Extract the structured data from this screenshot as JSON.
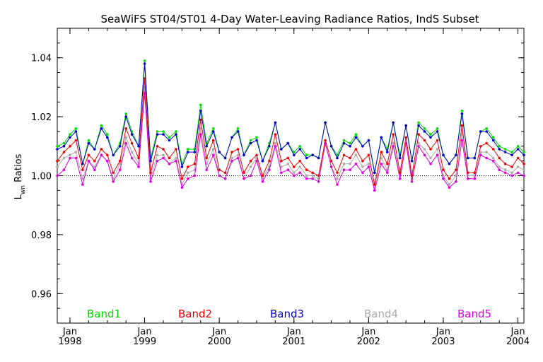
{
  "chart_data": {
    "type": "line",
    "title": "SeaWiFS ST04/ST01 4-Day Water-Leaving Radiance Ratios, IndS Subset",
    "xlabel": "",
    "ylabel_main": "L",
    "ylabel_sub": "wn",
    "ylabel_rest": " Ratios",
    "ylim": [
      0.95,
      1.05
    ],
    "yticks": [
      0.96,
      0.98,
      1.0,
      1.02,
      1.04
    ],
    "ytick_labels": [
      "0.96",
      "0.98",
      "1.00",
      "1.02",
      "1.04"
    ],
    "reference_line": 1.0,
    "xlim": [
      1997.83,
      2004.08
    ],
    "xticks": [
      {
        "value": 1998,
        "month": "Jan",
        "year": "1998"
      },
      {
        "value": 1999,
        "month": "Jan",
        "year": "1999"
      },
      {
        "value": 2000,
        "month": "Jan",
        "year": "2000"
      },
      {
        "value": 2001,
        "month": "Jan",
        "year": "2001"
      },
      {
        "value": 2002,
        "month": "Jan",
        "year": "2002"
      },
      {
        "value": 2003,
        "month": "Jan",
        "year": "2003"
      },
      {
        "value": 2004,
        "month": "Jan",
        "year": "2004"
      }
    ],
    "x": [
      1997.83,
      1997.92,
      1998.0,
      1998.08,
      1998.17,
      1998.25,
      1998.33,
      1998.42,
      1998.5,
      1998.58,
      1998.67,
      1998.75,
      1998.83,
      1998.92,
      1999.0,
      1999.08,
      1999.17,
      1999.25,
      1999.33,
      1999.42,
      1999.5,
      1999.58,
      1999.67,
      1999.75,
      1999.83,
      1999.92,
      2000.0,
      2000.08,
      2000.17,
      2000.25,
      2000.33,
      2000.42,
      2000.5,
      2000.58,
      2000.67,
      2000.75,
      2000.83,
      2000.92,
      2001.0,
      2001.08,
      2001.17,
      2001.25,
      2001.33,
      2001.42,
      2001.5,
      2001.58,
      2001.67,
      2001.75,
      2001.83,
      2001.92,
      2002.0,
      2002.08,
      2002.17,
      2002.25,
      2002.33,
      2002.42,
      2002.5,
      2002.58,
      2002.67,
      2002.75,
      2002.83,
      2002.92,
      2003.0,
      2003.08,
      2003.17,
      2003.25,
      2003.33,
      2003.42,
      2003.5,
      2003.58,
      2003.67,
      2003.75,
      2003.83,
      2003.92,
      2004.0,
      2004.08
    ],
    "series": [
      {
        "name": "Band1",
        "color": "#00dd00",
        "values": [
          1.01,
          1.011,
          1.014,
          1.016,
          1.004,
          1.012,
          1.009,
          1.017,
          1.014,
          1.007,
          1.011,
          1.021,
          1.015,
          1.01,
          1.039,
          1.006,
          1.015,
          1.015,
          1.013,
          1.015,
          1.004,
          1.009,
          1.009,
          1.024,
          1.011,
          1.016,
          1.008,
          1.006,
          1.013,
          1.016,
          1.007,
          1.012,
          1.013,
          1.005,
          1.011,
          1.018,
          1.009,
          1.011,
          1.008,
          1.01,
          1.007,
          1.007,
          1.006,
          1.018,
          1.01,
          1.007,
          1.012,
          1.011,
          1.014,
          1.01,
          1.012,
          1.001,
          1.013,
          1.009,
          1.018,
          1.007,
          1.017,
          1.005,
          1.018,
          1.016,
          1.014,
          1.016,
          1.007,
          1.004,
          1.007,
          1.022,
          1.006,
          1.006,
          1.015,
          1.016,
          1.013,
          1.01,
          1.009,
          1.008,
          1.01,
          1.008
        ]
      },
      {
        "name": "Band2",
        "color": "#ee0000",
        "values": [
          1.005,
          1.008,
          1.01,
          1.012,
          1.002,
          1.007,
          1.005,
          1.009,
          1.007,
          1.001,
          1.005,
          1.016,
          1.011,
          1.006,
          1.033,
          1.001,
          1.01,
          1.009,
          1.006,
          1.009,
          0.999,
          1.003,
          1.004,
          1.019,
          1.006,
          1.012,
          1.002,
          1.001,
          1.008,
          1.009,
          1.001,
          1.005,
          1.007,
          1.0,
          1.005,
          1.014,
          1.005,
          1.006,
          1.003,
          1.005,
          1.002,
          1.001,
          1.0,
          1.012,
          1.005,
          1.001,
          1.007,
          1.006,
          1.009,
          1.005,
          1.007,
          0.997,
          1.008,
          1.004,
          1.014,
          1.001,
          1.013,
          1.0,
          1.014,
          1.012,
          1.009,
          1.012,
          1.002,
          0.999,
          1.002,
          1.017,
          1.001,
          1.001,
          1.01,
          1.011,
          1.009,
          1.006,
          1.004,
          1.003,
          1.006,
          1.004
        ]
      },
      {
        "name": "Band3",
        "color": "#0000cc",
        "values": [
          1.009,
          1.01,
          1.013,
          1.015,
          1.004,
          1.011,
          1.009,
          1.016,
          1.013,
          1.007,
          1.01,
          1.02,
          1.014,
          1.01,
          1.038,
          1.005,
          1.014,
          1.014,
          1.012,
          1.014,
          1.003,
          1.008,
          1.008,
          1.022,
          1.01,
          1.015,
          1.008,
          1.006,
          1.013,
          1.015,
          1.007,
          1.011,
          1.012,
          1.005,
          1.01,
          1.018,
          1.009,
          1.011,
          1.007,
          1.009,
          1.006,
          1.007,
          1.006,
          1.018,
          1.01,
          1.006,
          1.011,
          1.01,
          1.013,
          1.01,
          1.012,
          1.001,
          1.013,
          1.008,
          1.018,
          1.006,
          1.017,
          1.005,
          1.017,
          1.015,
          1.013,
          1.015,
          1.007,
          1.004,
          1.007,
          1.021,
          1.006,
          1.006,
          1.015,
          1.015,
          1.012,
          1.009,
          1.008,
          1.007,
          1.009,
          1.007
        ]
      },
      {
        "name": "Band4",
        "color": "#aaaaaa",
        "values": [
          1.003,
          1.006,
          1.007,
          1.008,
          0.999,
          1.005,
          1.003,
          1.007,
          1.005,
          0.999,
          1.004,
          1.013,
          1.008,
          1.004,
          1.03,
          0.999,
          1.007,
          1.007,
          1.004,
          1.006,
          0.997,
          1.001,
          1.002,
          1.016,
          1.004,
          1.009,
          1.0,
          0.999,
          1.006,
          1.007,
          0.999,
          1.003,
          1.006,
          0.999,
          1.003,
          1.011,
          1.003,
          1.004,
          1.001,
          1.003,
          1.0,
          1.0,
          0.999,
          1.011,
          1.003,
          0.999,
          1.004,
          1.004,
          1.007,
          1.003,
          1.004,
          0.996,
          1.006,
          1.002,
          1.011,
          1.0,
          1.011,
          0.999,
          1.011,
          1.009,
          1.006,
          1.009,
          1.0,
          0.997,
          1.0,
          1.014,
          1.0,
          1.0,
          1.008,
          1.008,
          1.006,
          1.003,
          1.002,
          1.001,
          1.003,
          1.002
        ]
      },
      {
        "name": "Band5",
        "color": "#dd00dd",
        "values": [
          1.0,
          1.002,
          1.006,
          1.006,
          0.997,
          1.005,
          1.002,
          1.007,
          1.005,
          0.998,
          1.002,
          1.011,
          1.006,
          1.003,
          1.028,
          0.998,
          1.005,
          1.006,
          1.004,
          1.005,
          0.996,
          0.999,
          1.0,
          1.014,
          1.002,
          1.007,
          1.0,
          0.999,
          1.005,
          1.006,
          0.999,
          1.0,
          1.005,
          0.998,
          1.002,
          1.01,
          1.001,
          1.002,
          1.0,
          1.001,
          0.999,
          0.999,
          0.998,
          1.011,
          1.003,
          0.997,
          1.002,
          1.002,
          1.004,
          1.001,
          1.003,
          0.995,
          1.004,
          1.001,
          1.01,
          0.999,
          1.011,
          0.998,
          1.01,
          1.007,
          1.004,
          1.007,
          0.999,
          0.996,
          0.998,
          1.012,
          0.999,
          0.999,
          1.007,
          1.006,
          1.005,
          1.002,
          1.001,
          1.0,
          1.001,
          1.0
        ]
      }
    ],
    "legend_placement": "bottom",
    "grid": false
  }
}
